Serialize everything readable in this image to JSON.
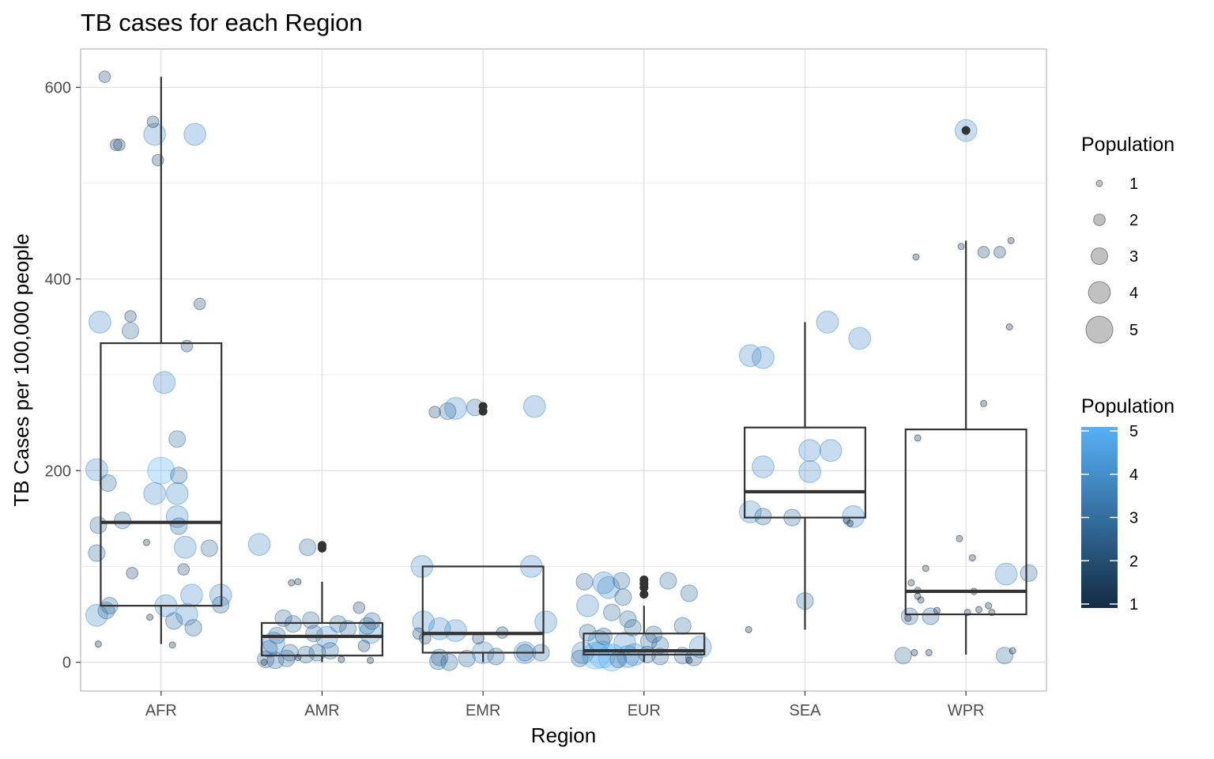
{
  "chart_data": {
    "type": "scatter",
    "title": "TB cases for each Region",
    "xlabel": "Region",
    "ylabel": "TB Cases per 100,000 people",
    "categories": [
      "AFR",
      "AMR",
      "EMR",
      "EUR",
      "SEA",
      "WPR"
    ],
    "ylim": [
      -30,
      640
    ],
    "yticks": [
      0,
      200,
      400,
      600
    ],
    "grid": true,
    "legend_position": "right",
    "size_legend": {
      "title": "Population",
      "values": [
        1,
        2,
        3,
        4,
        5
      ],
      "labels": [
        "1",
        "2",
        "3",
        "4",
        "5"
      ]
    },
    "color_legend": {
      "title": "Population",
      "range": [
        1,
        5
      ],
      "labels": [
        "1",
        "2",
        "3",
        "4",
        "5"
      ],
      "low_color": "#132b43",
      "high_color": "#56b1f7"
    },
    "boxes": [
      {
        "category": "AFR",
        "q1": 59,
        "median": 146,
        "q3": 333,
        "whisker_low": 19,
        "whisker_high": 611,
        "outliers": []
      },
      {
        "category": "AMR",
        "q1": 7,
        "median": 27,
        "q3": 41,
        "whisker_low": 0,
        "whisker_high": 84,
        "outliers": [
          122,
          119
        ]
      },
      {
        "category": "EMR",
        "q1": 10,
        "median": 30,
        "q3": 100,
        "whisker_low": 0,
        "whisker_high": 100,
        "outliers": [
          267,
          262
        ]
      },
      {
        "category": "EUR",
        "q1": 8,
        "median": 12,
        "q3": 30,
        "whisker_low": 0,
        "whisker_high": 59,
        "outliers": [
          86,
          82,
          78,
          71
        ]
      },
      {
        "category": "SEA",
        "q1": 151,
        "median": 178,
        "q3": 245,
        "whisker_low": 34,
        "whisker_high": 355,
        "outliers": []
      },
      {
        "category": "WPR",
        "q1": 50,
        "median": 74,
        "q3": 243,
        "whisker_low": 8,
        "whisker_high": 440,
        "outliers": [
          555
        ]
      }
    ],
    "points": [
      {
        "region": "AFR",
        "x": -0.35,
        "y": 611,
        "size": 2
      },
      {
        "region": "AFR",
        "x": -0.05,
        "y": 564,
        "size": 2
      },
      {
        "region": "AFR",
        "x": -0.04,
        "y": 551,
        "size": 4
      },
      {
        "region": "AFR",
        "x": 0.21,
        "y": 551,
        "size": 4
      },
      {
        "region": "AFR",
        "x": -0.28,
        "y": 540,
        "size": 2
      },
      {
        "region": "AFR",
        "x": -0.26,
        "y": 540,
        "size": 2
      },
      {
        "region": "AFR",
        "x": -0.02,
        "y": 524,
        "size": 2
      },
      {
        "region": "AFR",
        "x": 0.24,
        "y": 374,
        "size": 2
      },
      {
        "region": "AFR",
        "x": -0.19,
        "y": 361,
        "size": 2
      },
      {
        "region": "AFR",
        "x": -0.38,
        "y": 355,
        "size": 4
      },
      {
        "region": "AFR",
        "x": -0.19,
        "y": 346,
        "size": 3
      },
      {
        "region": "AFR",
        "x": 0.16,
        "y": 330,
        "size": 2
      },
      {
        "region": "AFR",
        "x": 0.02,
        "y": 292,
        "size": 4
      },
      {
        "region": "AFR",
        "x": 0.1,
        "y": 233,
        "size": 3
      },
      {
        "region": "AFR",
        "x": -0.4,
        "y": 201,
        "size": 4
      },
      {
        "region": "AFR",
        "x": 0.0,
        "y": 200,
        "size": 5
      },
      {
        "region": "AFR",
        "x": 0.11,
        "y": 195,
        "size": 3
      },
      {
        "region": "AFR",
        "x": -0.33,
        "y": 187,
        "size": 3
      },
      {
        "region": "AFR",
        "x": -0.04,
        "y": 176,
        "size": 4
      },
      {
        "region": "AFR",
        "x": 0.1,
        "y": 176,
        "size": 4
      },
      {
        "region": "AFR",
        "x": 0.1,
        "y": 152,
        "size": 4
      },
      {
        "region": "AFR",
        "x": -0.24,
        "y": 148,
        "size": 3
      },
      {
        "region": "AFR",
        "x": -0.39,
        "y": 143,
        "size": 3
      },
      {
        "region": "AFR",
        "x": 0.11,
        "y": 142,
        "size": 3
      },
      {
        "region": "AFR",
        "x": -0.09,
        "y": 125,
        "size": 1
      },
      {
        "region": "AFR",
        "x": 0.15,
        "y": 120,
        "size": 4
      },
      {
        "region": "AFR",
        "x": 0.3,
        "y": 119,
        "size": 3
      },
      {
        "region": "AFR",
        "x": -0.4,
        "y": 114,
        "size": 3
      },
      {
        "region": "AFR",
        "x": 0.14,
        "y": 97,
        "size": 2
      },
      {
        "region": "AFR",
        "x": -0.18,
        "y": 93,
        "size": 2
      },
      {
        "region": "AFR",
        "x": 0.19,
        "y": 70,
        "size": 4
      },
      {
        "region": "AFR",
        "x": 0.37,
        "y": 70,
        "size": 4
      },
      {
        "region": "AFR",
        "x": 0.37,
        "y": 60,
        "size": 3
      },
      {
        "region": "AFR",
        "x": -0.32,
        "y": 59,
        "size": 3
      },
      {
        "region": "AFR",
        "x": 0.03,
        "y": 59,
        "size": 4
      },
      {
        "region": "AFR",
        "x": -0.34,
        "y": 54,
        "size": 3
      },
      {
        "region": "AFR",
        "x": 0.16,
        "y": 50,
        "size": 4
      },
      {
        "region": "AFR",
        "x": -0.4,
        "y": 49,
        "size": 4
      },
      {
        "region": "AFR",
        "x": -0.07,
        "y": 47,
        "size": 1
      },
      {
        "region": "AFR",
        "x": 0.08,
        "y": 43,
        "size": 3
      },
      {
        "region": "AFR",
        "x": 0.2,
        "y": 36,
        "size": 3
      },
      {
        "region": "AFR",
        "x": -0.39,
        "y": 19,
        "size": 1
      },
      {
        "region": "AFR",
        "x": 0.07,
        "y": 18,
        "size": 1
      },
      {
        "region": "AMR",
        "x": -0.39,
        "y": 123,
        "size": 4
      },
      {
        "region": "AMR",
        "x": -0.09,
        "y": 120,
        "size": 3
      },
      {
        "region": "AMR",
        "x": -0.19,
        "y": 83,
        "size": 1
      },
      {
        "region": "AMR",
        "x": -0.15,
        "y": 84,
        "size": 1
      },
      {
        "region": "AMR",
        "x": 0.23,
        "y": 57,
        "size": 2
      },
      {
        "region": "AMR",
        "x": -0.24,
        "y": 46,
        "size": 3
      },
      {
        "region": "AMR",
        "x": -0.18,
        "y": 40,
        "size": 3
      },
      {
        "region": "AMR",
        "x": -0.07,
        "y": 44,
        "size": 3
      },
      {
        "region": "AMR",
        "x": 0.1,
        "y": 40,
        "size": 3
      },
      {
        "region": "AMR",
        "x": 0.31,
        "y": 43,
        "size": 3
      },
      {
        "region": "AMR",
        "x": 0.28,
        "y": 38,
        "size": 3
      },
      {
        "region": "AMR",
        "x": 0.16,
        "y": 35,
        "size": 3
      },
      {
        "region": "AMR",
        "x": 0.3,
        "y": 31,
        "size": 4
      },
      {
        "region": "AMR",
        "x": -0.28,
        "y": 28,
        "size": 3
      },
      {
        "region": "AMR",
        "x": -0.05,
        "y": 30,
        "size": 3
      },
      {
        "region": "AMR",
        "x": 0.03,
        "y": 26,
        "size": 4
      },
      {
        "region": "AMR",
        "x": -0.3,
        "y": 20,
        "size": 4
      },
      {
        "region": "AMR",
        "x": -0.33,
        "y": 14,
        "size": 3
      },
      {
        "region": "AMR",
        "x": 0.26,
        "y": 17,
        "size": 2
      },
      {
        "region": "AMR",
        "x": -0.2,
        "y": 10,
        "size": 3
      },
      {
        "region": "AMR",
        "x": -0.1,
        "y": 8,
        "size": 3
      },
      {
        "region": "AMR",
        "x": -0.03,
        "y": 10,
        "size": 3
      },
      {
        "region": "AMR",
        "x": 0.05,
        "y": 12,
        "size": 3
      },
      {
        "region": "AMR",
        "x": -0.35,
        "y": 3,
        "size": 3
      },
      {
        "region": "AMR",
        "x": -0.29,
        "y": 2,
        "size": 3
      },
      {
        "region": "AMR",
        "x": -0.22,
        "y": 4,
        "size": 3
      },
      {
        "region": "AMR",
        "x": -0.15,
        "y": 5,
        "size": 1
      },
      {
        "region": "AMR",
        "x": 0.12,
        "y": 3,
        "size": 1
      },
      {
        "region": "AMR",
        "x": 0.3,
        "y": 2,
        "size": 1
      },
      {
        "region": "AMR",
        "x": -0.36,
        "y": 0,
        "size": 1
      },
      {
        "region": "EMR",
        "x": -0.3,
        "y": 261,
        "size": 2
      },
      {
        "region": "EMR",
        "x": -0.22,
        "y": 262,
        "size": 3
      },
      {
        "region": "EMR",
        "x": -0.17,
        "y": 265,
        "size": 4
      },
      {
        "region": "EMR",
        "x": -0.05,
        "y": 266,
        "size": 3
      },
      {
        "region": "EMR",
        "x": 0.32,
        "y": 267,
        "size": 4
      },
      {
        "region": "EMR",
        "x": -0.38,
        "y": 100,
        "size": 4
      },
      {
        "region": "EMR",
        "x": 0.3,
        "y": 100,
        "size": 4
      },
      {
        "region": "EMR",
        "x": -0.37,
        "y": 42,
        "size": 4
      },
      {
        "region": "EMR",
        "x": 0.39,
        "y": 42,
        "size": 4
      },
      {
        "region": "EMR",
        "x": -0.27,
        "y": 35,
        "size": 4
      },
      {
        "region": "EMR",
        "x": -0.17,
        "y": 33,
        "size": 4
      },
      {
        "region": "EMR",
        "x": -0.4,
        "y": 30,
        "size": 2
      },
      {
        "region": "EMR",
        "x": -0.36,
        "y": 25,
        "size": 2
      },
      {
        "region": "EMR",
        "x": -0.03,
        "y": 25,
        "size": 2
      },
      {
        "region": "EMR",
        "x": 0.12,
        "y": 31,
        "size": 2
      },
      {
        "region": "EMR",
        "x": 0.26,
        "y": 10,
        "size": 3
      },
      {
        "region": "EMR",
        "x": 0.36,
        "y": 10,
        "size": 3
      },
      {
        "region": "EMR",
        "x": 0.26,
        "y": 10,
        "size": 4
      },
      {
        "region": "EMR",
        "x": 0.0,
        "y": 10,
        "size": 4
      },
      {
        "region": "EMR",
        "x": -0.27,
        "y": 5,
        "size": 3
      },
      {
        "region": "EMR",
        "x": -0.1,
        "y": 4,
        "size": 3
      },
      {
        "region": "EMR",
        "x": 0.08,
        "y": 6,
        "size": 3
      },
      {
        "region": "EMR",
        "x": -0.28,
        "y": 1,
        "size": 3
      },
      {
        "region": "EMR",
        "x": -0.21,
        "y": 0,
        "size": 3
      },
      {
        "region": "EUR",
        "x": -0.37,
        "y": 84,
        "size": 3
      },
      {
        "region": "EUR",
        "x": -0.25,
        "y": 83,
        "size": 4
      },
      {
        "region": "EUR",
        "x": -0.14,
        "y": 85,
        "size": 3
      },
      {
        "region": "EUR",
        "x": -0.22,
        "y": 78,
        "size": 4
      },
      {
        "region": "EUR",
        "x": 0.15,
        "y": 85,
        "size": 3
      },
      {
        "region": "EUR",
        "x": 0.28,
        "y": 72,
        "size": 3
      },
      {
        "region": "EUR",
        "x": -0.13,
        "y": 68,
        "size": 3
      },
      {
        "region": "EUR",
        "x": -0.35,
        "y": 59,
        "size": 4
      },
      {
        "region": "EUR",
        "x": -0.2,
        "y": 52,
        "size": 3
      },
      {
        "region": "EUR",
        "x": -0.1,
        "y": 45,
        "size": 3
      },
      {
        "region": "EUR",
        "x": 0.24,
        "y": 38,
        "size": 3
      },
      {
        "region": "EUR",
        "x": -0.07,
        "y": 36,
        "size": 3
      },
      {
        "region": "EUR",
        "x": -0.35,
        "y": 31,
        "size": 3
      },
      {
        "region": "EUR",
        "x": -0.25,
        "y": 27,
        "size": 3
      },
      {
        "region": "EUR",
        "x": 0.06,
        "y": 29,
        "size": 3
      },
      {
        "region": "EUR",
        "x": -0.28,
        "y": 22,
        "size": 4
      },
      {
        "region": "EUR",
        "x": -0.12,
        "y": 20,
        "size": 4
      },
      {
        "region": "EUR",
        "x": 0.03,
        "y": 22,
        "size": 3
      },
      {
        "region": "EUR",
        "x": 0.1,
        "y": 18,
        "size": 3
      },
      {
        "region": "EUR",
        "x": 0.35,
        "y": 16,
        "size": 4
      },
      {
        "region": "EUR",
        "x": -0.38,
        "y": 10,
        "size": 4
      },
      {
        "region": "EUR",
        "x": -0.3,
        "y": 7,
        "size": 5
      },
      {
        "region": "EUR",
        "x": -0.26,
        "y": 8,
        "size": 5
      },
      {
        "region": "EUR",
        "x": -0.2,
        "y": 5,
        "size": 5
      },
      {
        "region": "EUR",
        "x": -0.1,
        "y": 6,
        "size": 4
      },
      {
        "region": "EUR",
        "x": -0.06,
        "y": 8,
        "size": 4
      },
      {
        "region": "EUR",
        "x": 0.02,
        "y": 8,
        "size": 3
      },
      {
        "region": "EUR",
        "x": 0.1,
        "y": 6,
        "size": 3
      },
      {
        "region": "EUR",
        "x": 0.24,
        "y": 7,
        "size": 3
      },
      {
        "region": "EUR",
        "x": 0.31,
        "y": 5,
        "size": 3
      },
      {
        "region": "EUR",
        "x": -0.4,
        "y": 4,
        "size": 3
      },
      {
        "region": "EUR",
        "x": -0.16,
        "y": 3,
        "size": 3
      },
      {
        "region": "EUR",
        "x": 0.28,
        "y": 2,
        "size": 1
      },
      {
        "region": "SEA",
        "x": -0.34,
        "y": 320,
        "size": 4
      },
      {
        "region": "SEA",
        "x": -0.26,
        "y": 318,
        "size": 4
      },
      {
        "region": "SEA",
        "x": 0.14,
        "y": 355,
        "size": 4
      },
      {
        "region": "SEA",
        "x": 0.34,
        "y": 338,
        "size": 4
      },
      {
        "region": "SEA",
        "x": 0.03,
        "y": 221,
        "size": 4
      },
      {
        "region": "SEA",
        "x": 0.16,
        "y": 221,
        "size": 4
      },
      {
        "region": "SEA",
        "x": -0.26,
        "y": 204,
        "size": 4
      },
      {
        "region": "SEA",
        "x": 0.03,
        "y": 199,
        "size": 4
      },
      {
        "region": "SEA",
        "x": -0.34,
        "y": 157,
        "size": 4
      },
      {
        "region": "SEA",
        "x": -0.26,
        "y": 152,
        "size": 3
      },
      {
        "region": "SEA",
        "x": -0.08,
        "y": 151,
        "size": 3
      },
      {
        "region": "SEA",
        "x": 0.3,
        "y": 152,
        "size": 4
      },
      {
        "region": "SEA",
        "x": 0.26,
        "y": 148,
        "size": 1
      },
      {
        "region": "SEA",
        "x": 0.28,
        "y": 145,
        "size": 1
      },
      {
        "region": "SEA",
        "x": 0.0,
        "y": 64,
        "size": 3
      },
      {
        "region": "SEA",
        "x": -0.35,
        "y": 34,
        "size": 1
      },
      {
        "region": "WPR",
        "x": 0.0,
        "y": 555,
        "size": 4
      },
      {
        "region": "WPR",
        "x": -0.31,
        "y": 423,
        "size": 1
      },
      {
        "region": "WPR",
        "x": -0.03,
        "y": 434,
        "size": 1
      },
      {
        "region": "WPR",
        "x": 0.11,
        "y": 428,
        "size": 2
      },
      {
        "region": "WPR",
        "x": 0.21,
        "y": 428,
        "size": 2
      },
      {
        "region": "WPR",
        "x": 0.28,
        "y": 440,
        "size": 1
      },
      {
        "region": "WPR",
        "x": 0.27,
        "y": 350,
        "size": 1
      },
      {
        "region": "WPR",
        "x": 0.11,
        "y": 270,
        "size": 1
      },
      {
        "region": "WPR",
        "x": -0.3,
        "y": 234,
        "size": 1
      },
      {
        "region": "WPR",
        "x": -0.04,
        "y": 129,
        "size": 1
      },
      {
        "region": "WPR",
        "x": 0.04,
        "y": 109,
        "size": 1
      },
      {
        "region": "WPR",
        "x": -0.25,
        "y": 98,
        "size": 1
      },
      {
        "region": "WPR",
        "x": 0.25,
        "y": 92,
        "size": 4
      },
      {
        "region": "WPR",
        "x": 0.39,
        "y": 93,
        "size": 3
      },
      {
        "region": "WPR",
        "x": -0.34,
        "y": 83,
        "size": 1
      },
      {
        "region": "WPR",
        "x": -0.3,
        "y": 75,
        "size": 1
      },
      {
        "region": "WPR",
        "x": 0.05,
        "y": 74,
        "size": 1
      },
      {
        "region": "WPR",
        "x": -0.3,
        "y": 69,
        "size": 1
      },
      {
        "region": "WPR",
        "x": -0.28,
        "y": 65,
        "size": 1
      },
      {
        "region": "WPR",
        "x": 0.08,
        "y": 55,
        "size": 1
      },
      {
        "region": "WPR",
        "x": 0.14,
        "y": 59,
        "size": 1
      },
      {
        "region": "WPR",
        "x": -0.18,
        "y": 54,
        "size": 1
      },
      {
        "region": "WPR",
        "x": 0.01,
        "y": 52,
        "size": 1
      },
      {
        "region": "WPR",
        "x": 0.16,
        "y": 52,
        "size": 1
      },
      {
        "region": "WPR",
        "x": -0.22,
        "y": 48,
        "size": 3
      },
      {
        "region": "WPR",
        "x": -0.35,
        "y": 48,
        "size": 3
      },
      {
        "region": "WPR",
        "x": -0.36,
        "y": 46,
        "size": 1
      },
      {
        "region": "WPR",
        "x": -0.39,
        "y": 7,
        "size": 3
      },
      {
        "region": "WPR",
        "x": -0.32,
        "y": 10,
        "size": 1
      },
      {
        "region": "WPR",
        "x": -0.23,
        "y": 10,
        "size": 1
      },
      {
        "region": "WPR",
        "x": 0.24,
        "y": 7,
        "size": 3
      },
      {
        "region": "WPR",
        "x": 0.29,
        "y": 12,
        "size": 1
      }
    ]
  }
}
